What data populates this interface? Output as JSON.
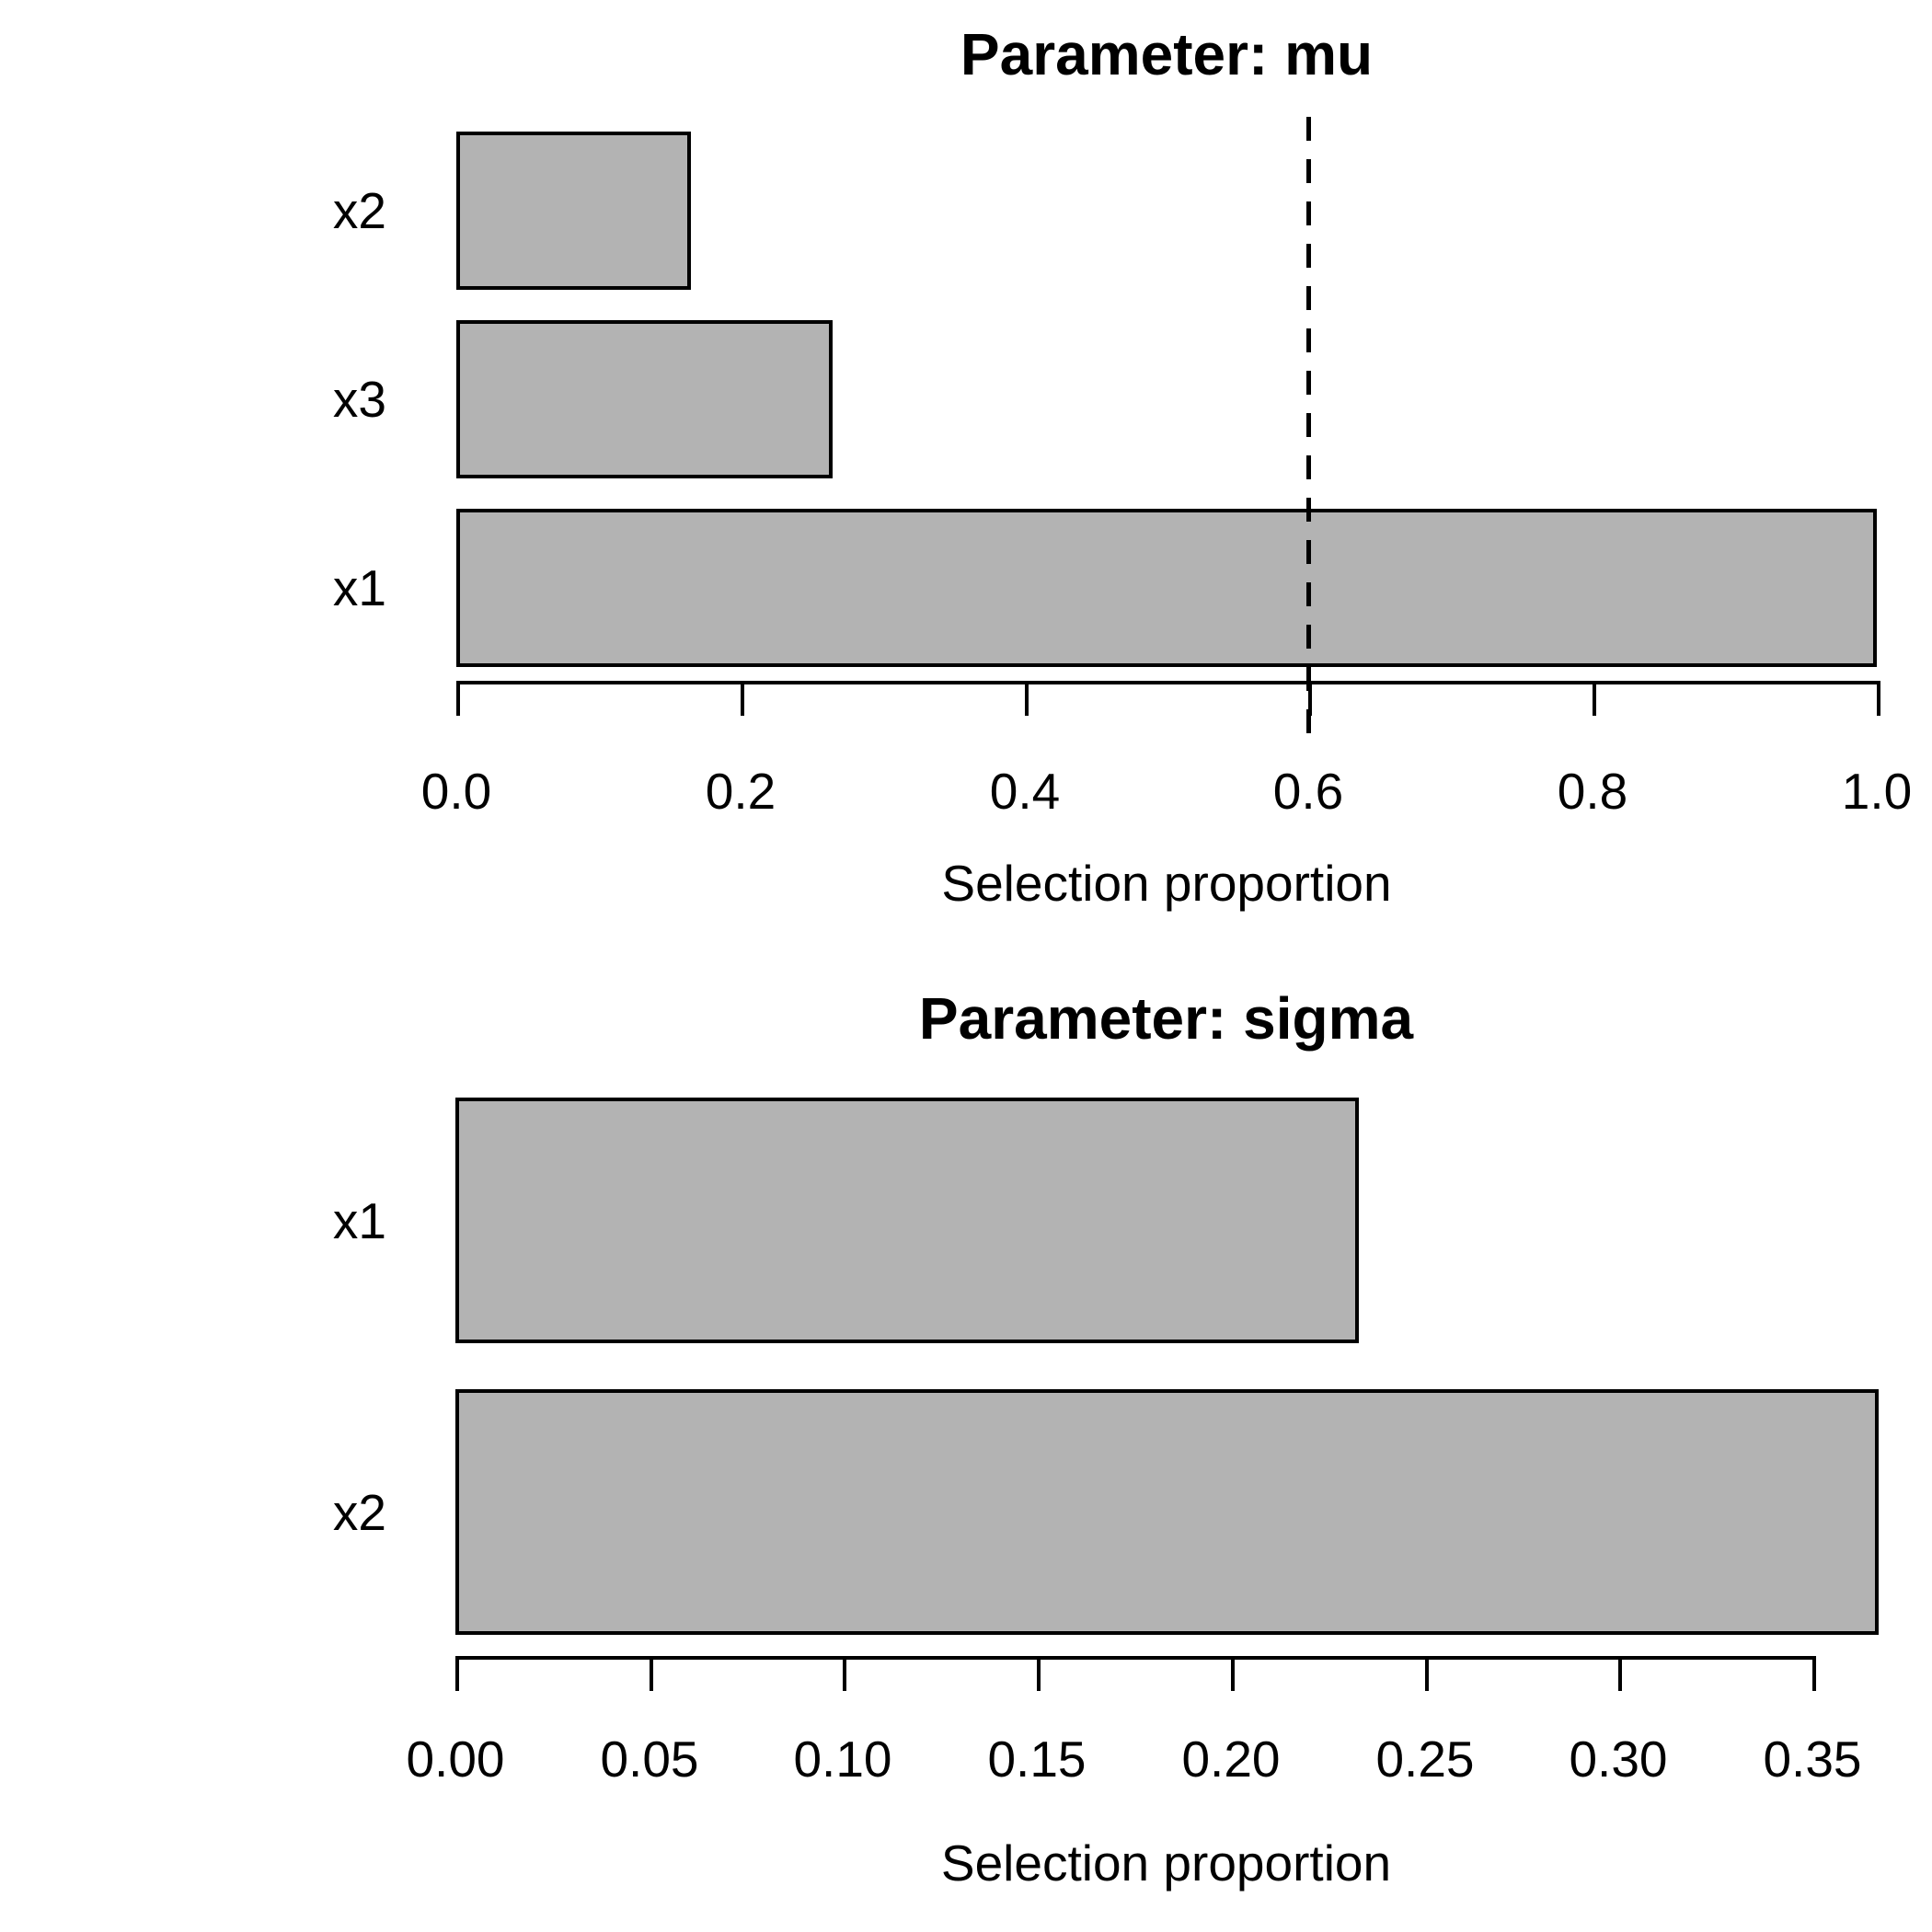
{
  "figure": {
    "background_color": "#ffffff",
    "text_color": "#000000"
  },
  "chart_data": [
    {
      "type": "bar",
      "orientation": "horizontal",
      "title": "Parameter: mu",
      "categories": [
        "x2",
        "x3",
        "x1"
      ],
      "values": [
        0.165,
        0.265,
        1.0
      ],
      "xlabel": "Selection proportion",
      "xlim": [
        0.0,
        1.0
      ],
      "xticks": [
        0.0,
        0.2,
        0.4,
        0.6,
        0.8,
        1.0
      ],
      "xtick_labels": [
        "0.0",
        "0.2",
        "0.4",
        "0.6",
        "0.8",
        "1.0"
      ],
      "threshold_line": {
        "value": 0.6,
        "style": "dashed",
        "color": "#000000"
      },
      "bar_fill": "#b3b3b3",
      "bar_border": "#000000",
      "grid": false,
      "legend": null
    },
    {
      "type": "bar",
      "orientation": "horizontal",
      "title": "Parameter: sigma",
      "categories": [
        "x1",
        "x2"
      ],
      "values": [
        0.233,
        0.367
      ],
      "xlabel": "Selection proportion",
      "xlim": [
        0.0,
        0.35
      ],
      "xticks": [
        0.0,
        0.05,
        0.1,
        0.15,
        0.2,
        0.25,
        0.3,
        0.35
      ],
      "xtick_labels": [
        "0.00",
        "0.05",
        "0.10",
        "0.15",
        "0.20",
        "0.25",
        "0.30",
        "0.35"
      ],
      "threshold_line": null,
      "bar_fill": "#b3b3b3",
      "bar_border": "#000000",
      "grid": false,
      "legend": null
    }
  ]
}
